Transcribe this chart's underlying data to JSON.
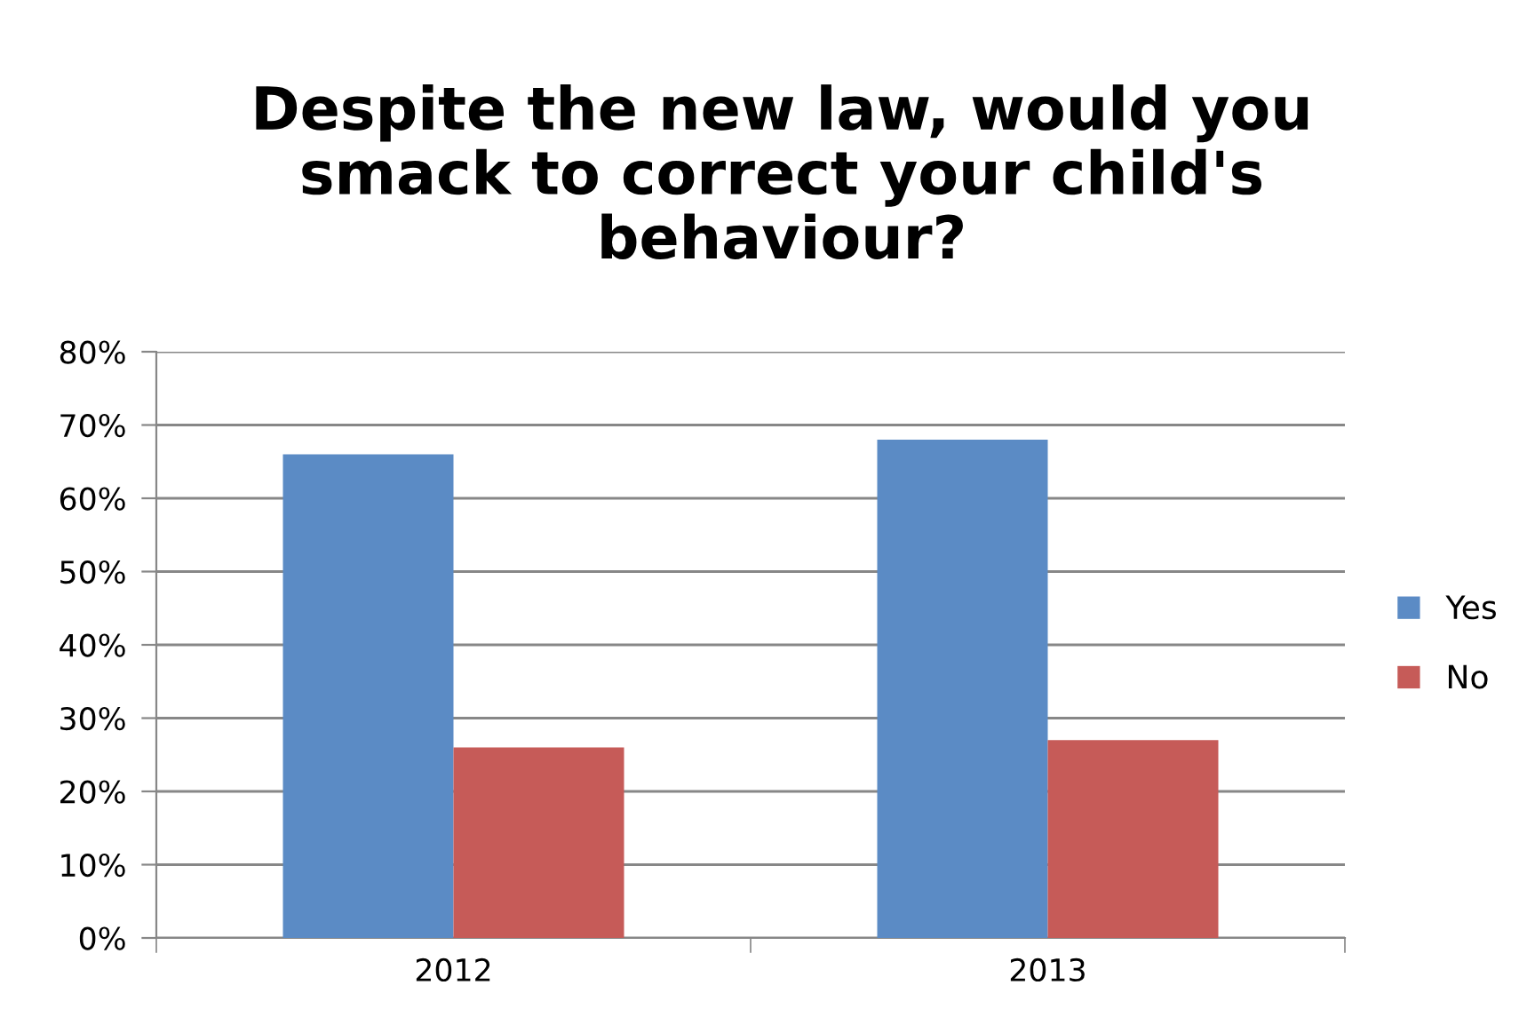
{
  "chart_data": {
    "type": "bar",
    "title": "Despite the new law, would you\nsmack to correct your child's\nbehaviour?",
    "categories": [
      "2012",
      "2013"
    ],
    "series": [
      {
        "name": "Yes",
        "color": "#5b8bc5",
        "values": [
          66,
          68
        ]
      },
      {
        "name": "No",
        "color": "#c65b58",
        "values": [
          26,
          27
        ]
      }
    ],
    "ylim": [
      0,
      80
    ],
    "yticks": [
      {
        "value": 0,
        "label": "0%"
      },
      {
        "value": 10,
        "label": "10%"
      },
      {
        "value": 20,
        "label": "20%"
      },
      {
        "value": 30,
        "label": "30%"
      },
      {
        "value": 40,
        "label": "40%"
      },
      {
        "value": 50,
        "label": "50%"
      },
      {
        "value": 60,
        "label": "60%"
      },
      {
        "value": 70,
        "label": "70%"
      },
      {
        "value": 80,
        "label": "80%"
      }
    ],
    "grid": "y",
    "legend": "right"
  }
}
